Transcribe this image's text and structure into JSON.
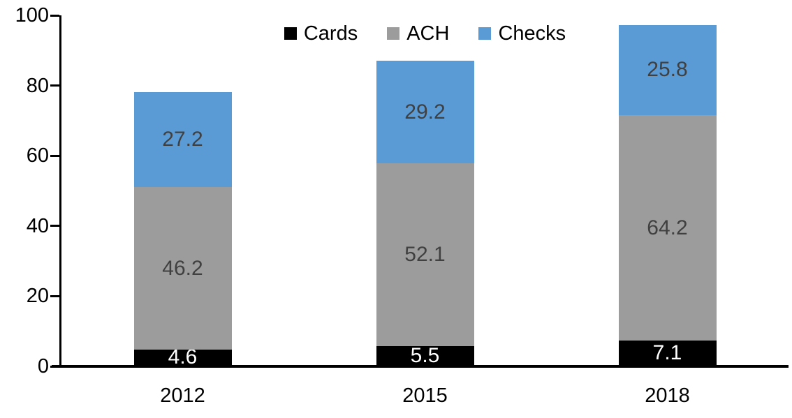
{
  "chart_data": {
    "type": "bar",
    "variant": "stacked-column",
    "title": "",
    "xlabel": "",
    "ylabel": "",
    "categories": [
      "2012",
      "2015",
      "2018"
    ],
    "series": [
      {
        "name": "Cards",
        "color": "#000000",
        "label_color": "#ffffff",
        "values": [
          4.6,
          5.5,
          7.1
        ]
      },
      {
        "name": "ACH",
        "color": "#9C9C9C",
        "label_color": "#404040",
        "values": [
          46.2,
          52.1,
          64.2
        ]
      },
      {
        "name": "Checks",
        "color": "#5B9BD5",
        "label_color": "#404040",
        "values": [
          27.2,
          29.2,
          25.8
        ]
      }
    ],
    "totals": [
      78.0,
      86.8,
      97.1
    ],
    "ylim": [
      0,
      100
    ],
    "yticks": [
      0,
      20,
      40,
      60,
      80,
      100
    ],
    "grid": "off",
    "legend_position": "top-center",
    "axis_color": "#000000",
    "background_color": "#ffffff",
    "data_labels_visible": true
  }
}
